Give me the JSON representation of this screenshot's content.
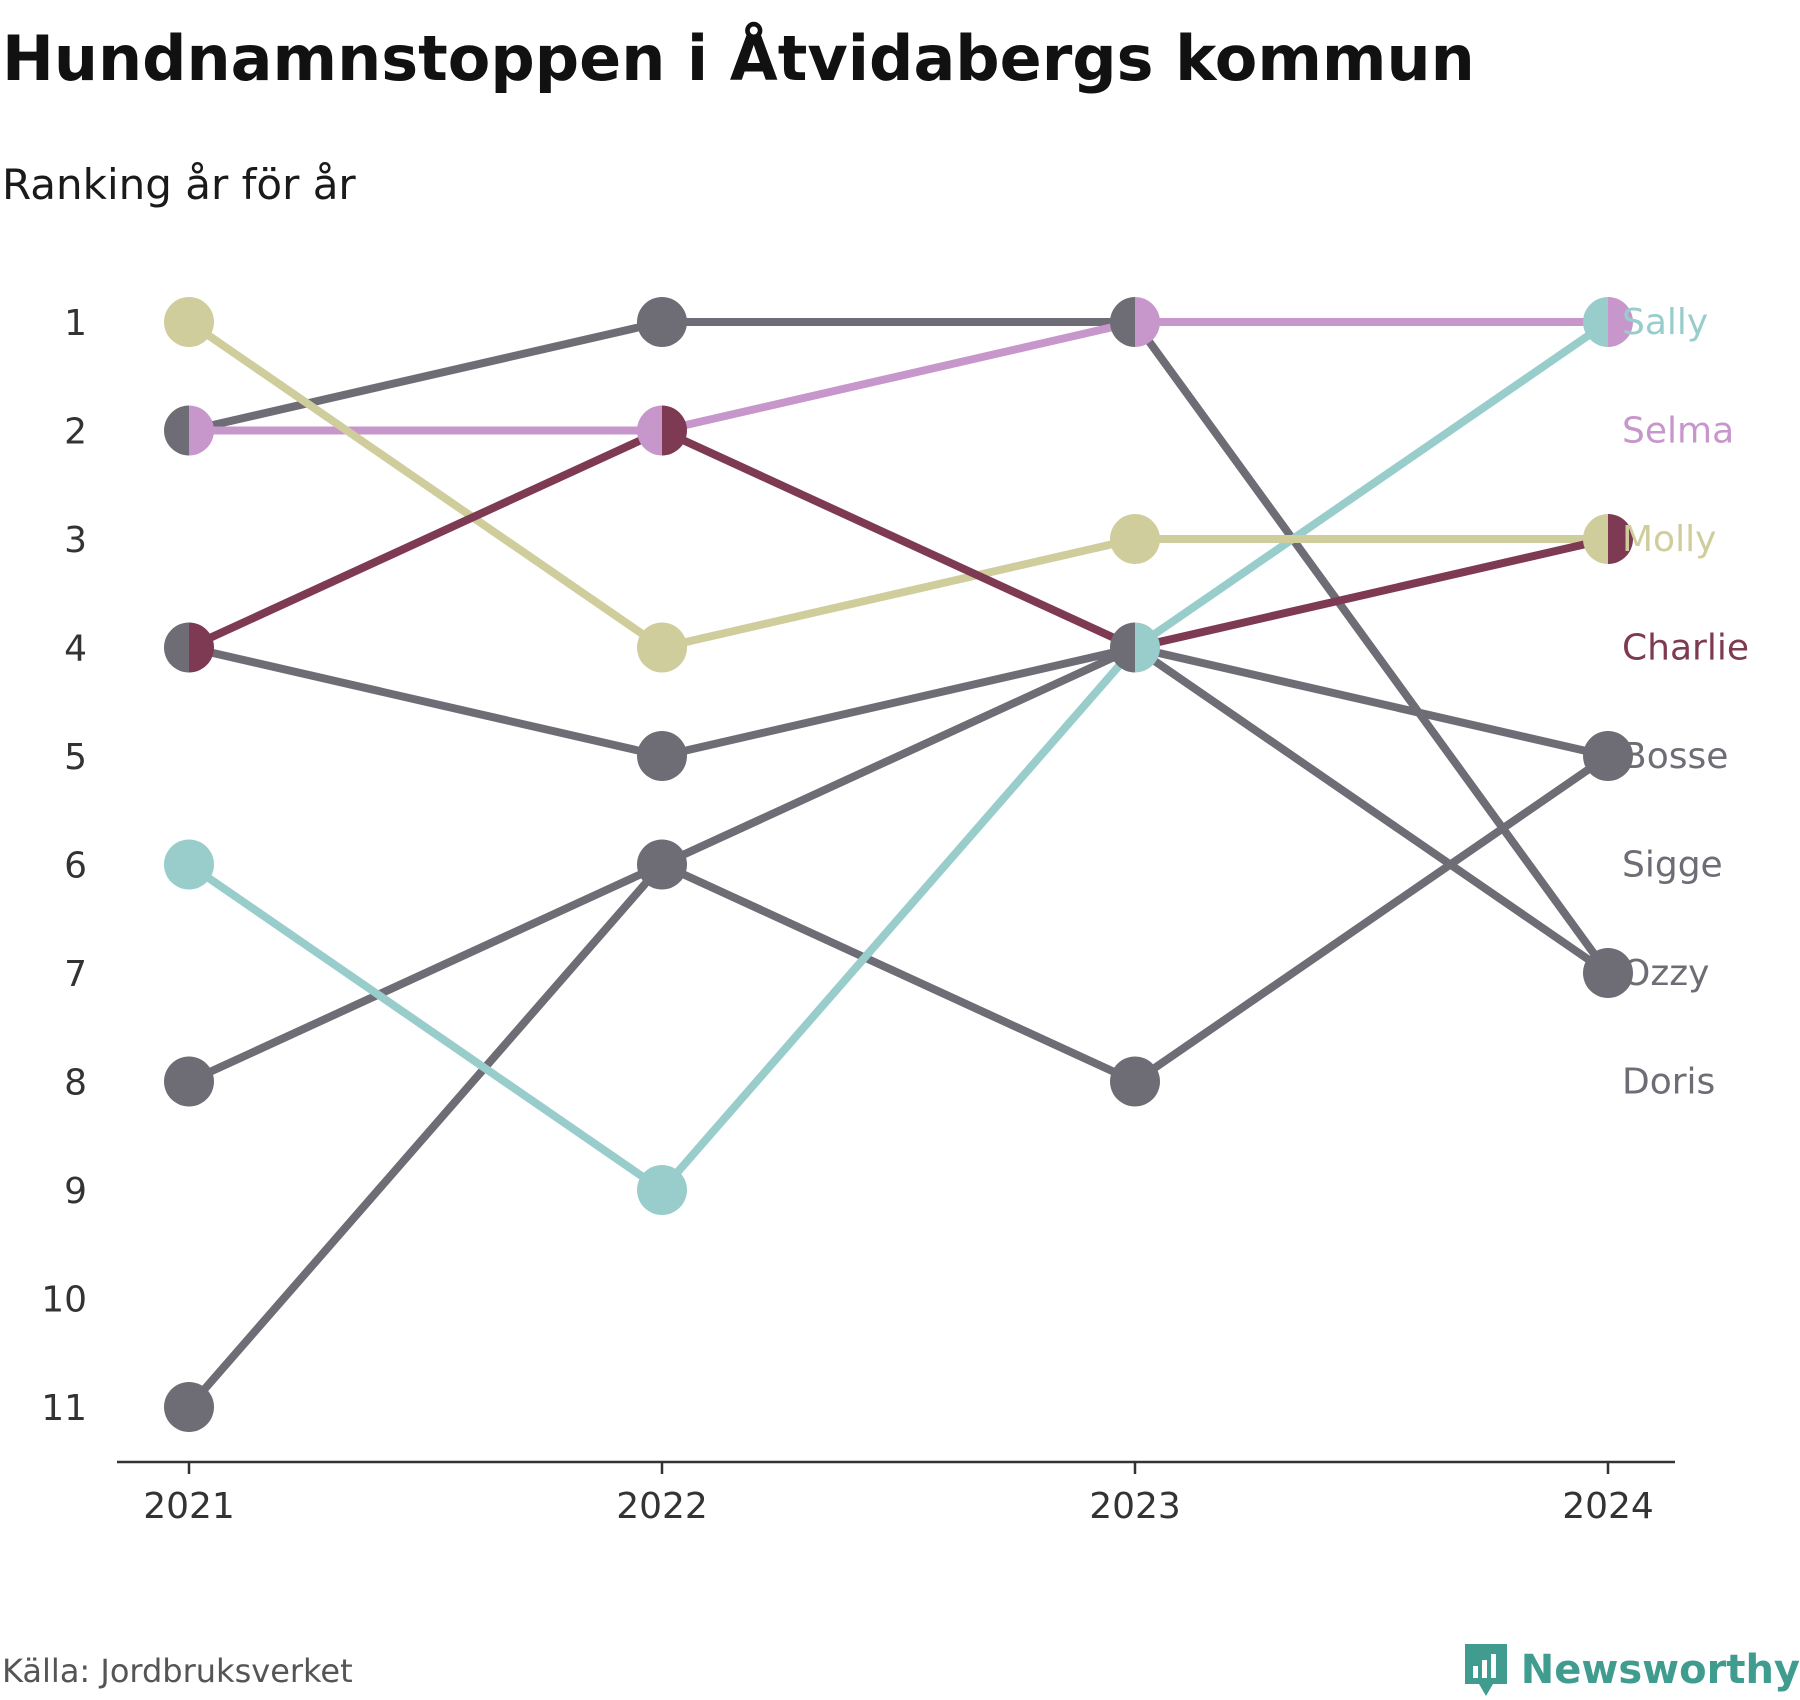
{
  "title": "Hundnamnstoppen i Åtvidabergs kommun",
  "subtitle": "Ranking år för år",
  "source": "Källa: Jordbruksverket",
  "brand": {
    "name": "Newsworthy",
    "icon": "newsworthy-logo-icon",
    "color": "#3f9c8f"
  },
  "chart_data": {
    "type": "line",
    "variant": "bump",
    "x": [
      "2021",
      "2022",
      "2023",
      "2024"
    ],
    "y_ticks": [
      1,
      2,
      3,
      4,
      5,
      6,
      7,
      8,
      9,
      10,
      11
    ],
    "ylim": [
      11,
      1
    ],
    "y_inverted": true,
    "grid": false,
    "legend": "direct-labels-right",
    "series": [
      {
        "name": "Sally",
        "color": "#98cdcc",
        "values": [
          6,
          9,
          4,
          1
        ]
      },
      {
        "name": "Selma",
        "color": "#c797cc",
        "values": [
          2,
          2,
          1,
          1
        ]
      },
      {
        "name": "Molly",
        "color": "#d0cd9c",
        "values": [
          1,
          4,
          3,
          3
        ]
      },
      {
        "name": "Charlie",
        "color": "#7d3a52",
        "values": [
          4,
          2,
          4,
          3
        ]
      },
      {
        "name": "Bosse",
        "color": "#6e6d75",
        "values": [
          4,
          5,
          4,
          5
        ]
      },
      {
        "name": "Sigge",
        "color": "#6e6d75",
        "values": [
          8,
          6,
          4,
          7
        ]
      },
      {
        "name": "Ozzy",
        "color": "#6e6d75",
        "values": [
          2,
          1,
          1,
          7
        ]
      },
      {
        "name": "Doris",
        "color": "#6e6d75",
        "values": [
          11,
          6,
          8,
          5
        ]
      }
    ],
    "label_slots": {
      "Sally": 1,
      "Selma": 2,
      "Molly": 3,
      "Charlie": 4,
      "Bosse": 5,
      "Sigge": 6,
      "Ozzy": 7,
      "Doris": 8
    }
  }
}
